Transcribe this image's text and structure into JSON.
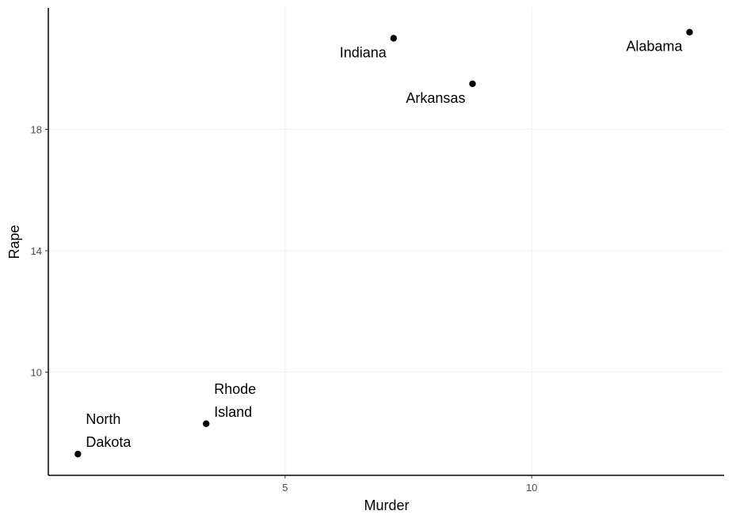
{
  "chart_data": {
    "type": "scatter",
    "title": "",
    "xlabel": "Murder",
    "ylabel": "Rape",
    "xlim": [
      0.2,
      13.9
    ],
    "ylim": [
      6.6,
      22
    ],
    "x_ticks": [
      5,
      10
    ],
    "y_ticks": [
      10,
      14,
      18
    ],
    "grid": true,
    "points": [
      {
        "label": "Alabama",
        "x": 13.2,
        "y": 21.2
      },
      {
        "label": "Arkansas",
        "x": 8.8,
        "y": 19.5
      },
      {
        "label": "Indiana",
        "x": 7.2,
        "y": 21.0
      },
      {
        "label": "North Dakota",
        "x": 0.8,
        "y": 7.3
      },
      {
        "label": "Rhode Island",
        "x": 3.4,
        "y": 8.3
      }
    ]
  }
}
